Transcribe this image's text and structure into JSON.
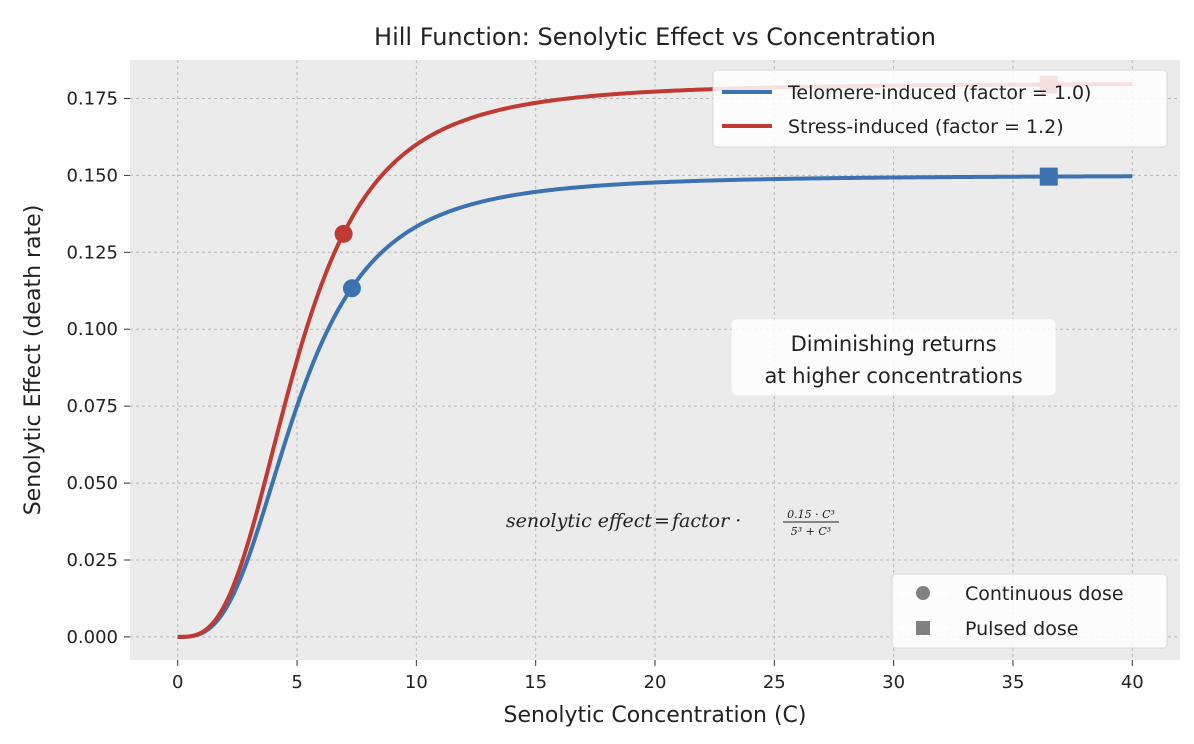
{
  "chart_data": {
    "type": "line",
    "title": "Hill Function: Senolytic Effect vs Concentration",
    "xlabel": "Senolytic Concentration (C)",
    "ylabel": "Senolytic Effect (death rate)",
    "xlim": [
      -2,
      42
    ],
    "ylim": [
      -0.0075,
      0.1875
    ],
    "xticks": [
      0,
      5,
      10,
      15,
      20,
      25,
      30,
      35,
      40
    ],
    "yticks": [
      0.0,
      0.025,
      0.05,
      0.075,
      0.1,
      0.125,
      0.15,
      0.175
    ],
    "xtick_labels": [
      "0",
      "5",
      "10",
      "15",
      "20",
      "25",
      "30",
      "35",
      "40"
    ],
    "ytick_labels": [
      "0.000",
      "0.025",
      "0.050",
      "0.075",
      "0.100",
      "0.125",
      "0.150",
      "0.175"
    ],
    "grid": true,
    "hill": {
      "vmax": 0.15,
      "k": 5,
      "n": 3,
      "x_range": [
        0,
        40
      ]
    },
    "series": [
      {
        "name": "Telomere-induced (factor = 1.0)",
        "factor": 1.0,
        "color": "#3c72b0",
        "markers": {
          "continuous": {
            "x": 7.3,
            "y": 0.1133
          },
          "pulsed": {
            "x": 36.5,
            "y": 0.1496
          }
        }
      },
      {
        "name": "Stress-induced (factor = 1.2)",
        "factor": 1.2,
        "color": "#c03a33",
        "markers": {
          "continuous": {
            "x": 6.95,
            "y": 0.131
          },
          "pulsed": {
            "x": 36.5,
            "y": 0.1795
          }
        }
      }
    ],
    "legend": {
      "placement": "top-right"
    },
    "marker_legend": {
      "placement": "bottom-right",
      "entries": [
        {
          "label": "Continuous dose",
          "marker": "circle"
        },
        {
          "label": "Pulsed dose",
          "marker": "square"
        }
      ]
    },
    "annotation": {
      "lines": [
        "Diminishing returns",
        "at higher concentrations"
      ],
      "x": 30,
      "y": 0.087
    },
    "formula": {
      "lhs": "senolytic effect",
      "rhs": "factor ·",
      "numerator": "0.15 · C³",
      "denominator": "5³ + C³",
      "x": 20,
      "y": 0.038
    }
  }
}
